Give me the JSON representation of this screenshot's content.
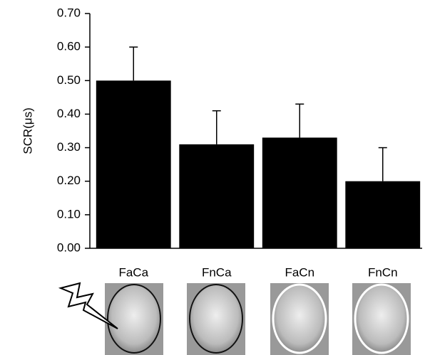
{
  "chart_data": {
    "type": "bar",
    "y_label": "SCR(μs)",
    "categories": [
      "FaCa",
      "FnCa",
      "FaCn",
      "FnCn"
    ],
    "values": [
      0.5,
      0.31,
      0.33,
      0.2
    ],
    "errors": [
      0.1,
      0.1,
      0.1,
      0.1
    ],
    "color": "#000000",
    "ylim": [
      0,
      0.7
    ],
    "yticks": [
      {
        "value": 0,
        "label": "0.00"
      },
      {
        "value": 0.1,
        "label": "0.10"
      },
      {
        "value": 0.2,
        "label": "0.20"
      },
      {
        "value": 0.3,
        "label": "0.30"
      },
      {
        "value": 0.4,
        "label": "0.40"
      },
      {
        "value": 0.5,
        "label": "0.50"
      },
      {
        "value": 0.6,
        "label": "0.60"
      },
      {
        "value": 0.7,
        "label": "0.70"
      }
    ]
  }
}
